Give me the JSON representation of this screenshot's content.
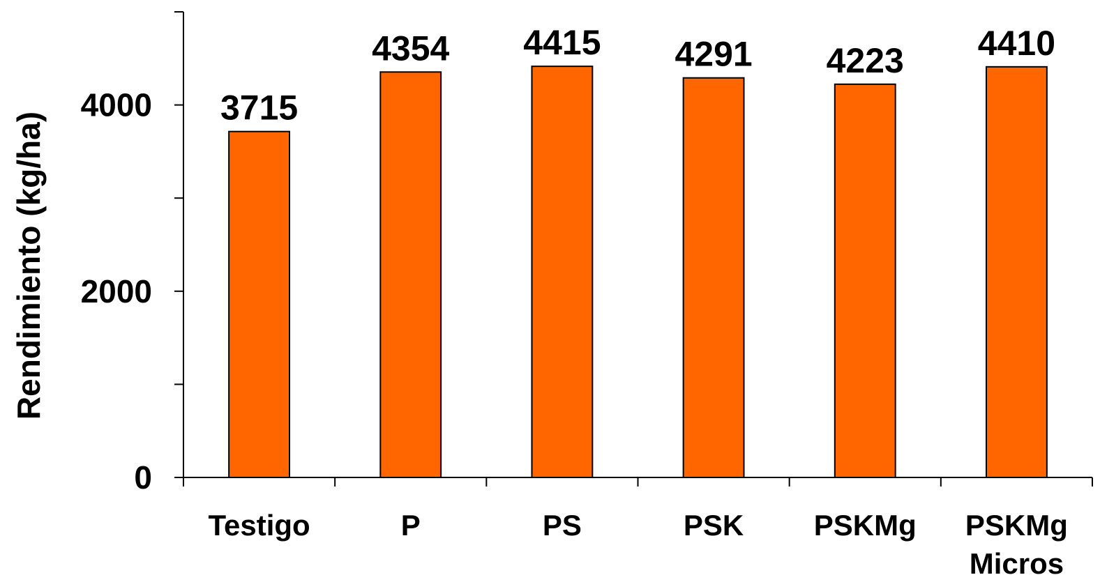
{
  "chart_data": {
    "type": "bar",
    "title": "",
    "xlabel": "",
    "ylabel": "Rendimiento (kg/ha)",
    "categories": [
      [
        "Testigo"
      ],
      [
        "P"
      ],
      [
        "PS"
      ],
      [
        "PSK"
      ],
      [
        "PSKMg"
      ],
      [
        "PSKMg",
        "Micros"
      ]
    ],
    "values": [
      3715,
      4354,
      4415,
      4291,
      4223,
      4410
    ],
    "data_labels": [
      "3715",
      "4354",
      "4415",
      "4291",
      "4223",
      "4410"
    ],
    "ylim": [
      0,
      5000
    ],
    "yticks": [
      0,
      1000,
      2000,
      3000,
      4000,
      5000
    ],
    "ytick_labels": [
      {
        "value": 0,
        "label": "0"
      },
      {
        "value": 2000,
        "label": "2000"
      },
      {
        "value": 4000,
        "label": "4000"
      }
    ],
    "grid": false,
    "legend": "none",
    "bar_color": "#FF6600"
  }
}
